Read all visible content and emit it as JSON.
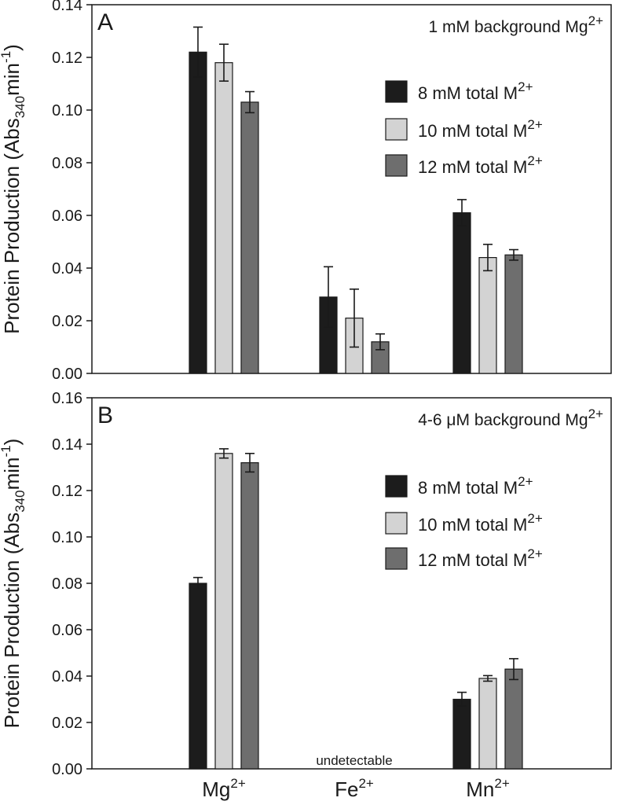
{
  "chart_data": [
    {
      "type": "bar",
      "panel_label": "A",
      "annotation": "1 mM background Mg",
      "annotation_sup": "2+",
      "ylabel": "Protein Production (Abs",
      "ylabel_sub": "340",
      "ylabel_tail": "min",
      "ylabel_sup": "-1",
      "ylabel_close": ")",
      "ylim": [
        0,
        0.14
      ],
      "yticks": [
        "0.00",
        "0.02",
        "0.04",
        "0.06",
        "0.08",
        "0.10",
        "0.12",
        "0.14"
      ],
      "categories": [
        "Mg2+",
        "Fe2+",
        "Mn2+"
      ],
      "series": [
        {
          "name": "8 mM total M2+",
          "color": "#1c1c1c",
          "values": [
            0.122,
            0.029,
            0.061
          ],
          "errors": [
            0.0095,
            0.0115,
            0.005
          ]
        },
        {
          "name": "10 mM total M2+",
          "color": "#d3d3d3",
          "values": [
            0.118,
            0.021,
            0.044
          ],
          "errors": [
            0.007,
            0.011,
            0.005
          ]
        },
        {
          "name": "12 mM total M2+",
          "color": "#6e6e6e",
          "values": [
            0.103,
            0.012,
            0.045
          ],
          "errors": [
            0.004,
            0.003,
            0.002
          ]
        }
      ],
      "legend": [
        {
          "base": "8 mM total M",
          "sup": "2+"
        },
        {
          "base": "10 mM total M",
          "sup": "2+"
        },
        {
          "base": "12 mM total M",
          "sup": "2+"
        }
      ],
      "legend_position": "top-right",
      "grid": false
    },
    {
      "type": "bar",
      "panel_label": "B",
      "annotation": "4-6 μM background Mg",
      "annotation_sup": "2+",
      "ylabel": "Protein Production (Abs",
      "ylabel_sub": "340",
      "ylabel_tail": "min",
      "ylabel_sup": "-1",
      "ylabel_close": ")",
      "ylim": [
        0,
        0.16
      ],
      "yticks": [
        "0.00",
        "0.02",
        "0.04",
        "0.06",
        "0.08",
        "0.10",
        "0.12",
        "0.14",
        "0.16"
      ],
      "categories": [
        "Mg2+",
        "Fe2+",
        "Mn2+"
      ],
      "category_labels": [
        {
          "base": "Mg",
          "sup": "2+"
        },
        {
          "base": "Fe",
          "sup": "2+"
        },
        {
          "base": "Mn",
          "sup": "2+"
        }
      ],
      "series": [
        {
          "name": "8 mM total M2+",
          "color": "#1c1c1c",
          "values": [
            0.08,
            null,
            0.03
          ],
          "errors": [
            0.0025,
            null,
            0.003
          ]
        },
        {
          "name": "10 mM total M2+",
          "color": "#d3d3d3",
          "values": [
            0.136,
            null,
            0.039
          ],
          "errors": [
            0.002,
            null,
            0.0012
          ]
        },
        {
          "name": "12 mM total M2+",
          "color": "#6e6e6e",
          "values": [
            0.132,
            null,
            0.043
          ],
          "errors": [
            0.004,
            null,
            0.0045
          ]
        }
      ],
      "legend": [
        {
          "base": "8 mM total M",
          "sup": "2+"
        },
        {
          "base": "10 mM total M",
          "sup": "2+"
        },
        {
          "base": "12 mM total M",
          "sup": "2+"
        }
      ],
      "legend_position": "right",
      "note": "undetectable",
      "grid": false
    }
  ]
}
